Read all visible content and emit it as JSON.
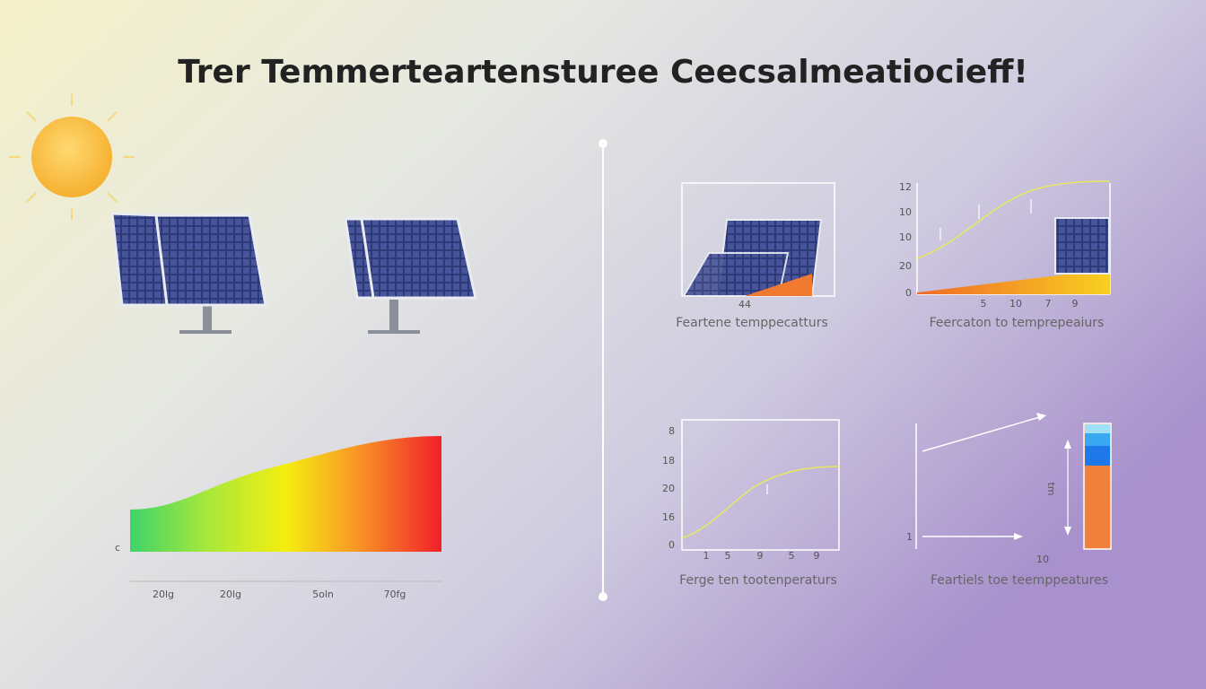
{
  "title": "Trer Temmerteartensturee Ceecsalmeatiocieff!",
  "gradient_chart": {
    "axis_start": "c",
    "labels": [
      "20lg",
      "20lg",
      "5oln",
      "70fg"
    ]
  },
  "panels": [
    {
      "caption": "Feartene temppecatturs",
      "labels": [
        "44"
      ]
    },
    {
      "caption": "Feercaton to temprepeaiurs",
      "y_labels": [
        "12",
        "10",
        "10",
        "20",
        "0"
      ],
      "x_labels": [
        "5",
        "10",
        "7",
        "9"
      ]
    },
    {
      "caption": "Ferge ten tootenperaturs",
      "y_labels": [
        "8",
        "18",
        "20",
        "16",
        "0"
      ],
      "x_labels": [
        "1",
        "5",
        "9",
        "5",
        "9"
      ]
    },
    {
      "caption": "Feartiels toe teemppeatures",
      "labels": [
        "1",
        "10",
        "tm"
      ]
    }
  ]
}
